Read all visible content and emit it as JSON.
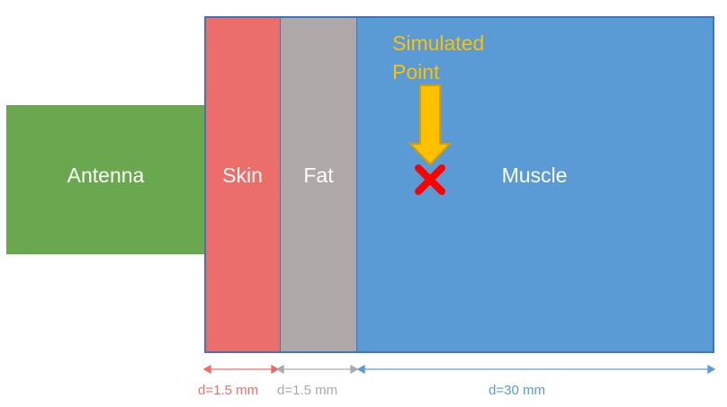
{
  "layers": {
    "antenna": "Antenna",
    "skin": "Skin",
    "fat": "Fat",
    "muscle": "Muscle"
  },
  "marker": {
    "label_line1": "Simulated",
    "label_line2": "Point",
    "arrow_color": "#ffc000",
    "cross_color": "#ff0000"
  },
  "dimensions": {
    "skin": "d=1.5 mm",
    "fat": "d=1.5 mm",
    "muscle": "d=30 mm"
  },
  "colors": {
    "antenna": "#6aa84f",
    "skin": "#eb6e6a",
    "fat": "#aea9a8",
    "muscle": "#5b9bd5",
    "border": "#3f76b8"
  }
}
